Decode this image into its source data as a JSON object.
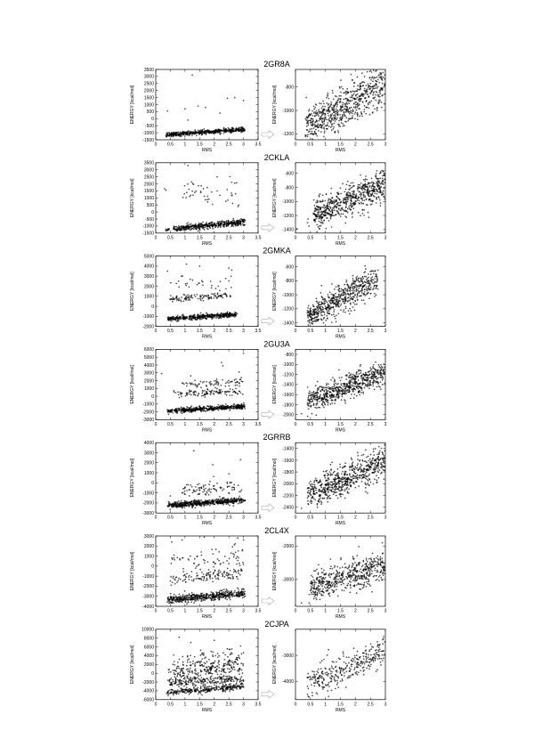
{
  "figure": {
    "x_tick_labels": [
      "0",
      "0.5",
      "1",
      "1.5",
      "2",
      "2.5",
      "3",
      "3.5"
    ]
  },
  "chart_data": [
    {
      "panel": "2GR8A",
      "type": "scatter",
      "title": "2GR8A",
      "xlabel": "RMS",
      "ylabel": "ENERGY [kcal/mol]",
      "left": {
        "xlim": [
          0,
          3.5
        ],
        "ylim": [
          -1500,
          3500
        ],
        "yticks": [
          -1500,
          -1000,
          -500,
          0,
          500,
          1000,
          1500,
          2000,
          2500,
          3000,
          3500
        ],
        "clusters": [
          {
            "x_start": 0.35,
            "x_end": 3.05,
            "y_start": -1150,
            "y_end": -750,
            "spread": 80,
            "count": 500
          }
        ],
        "outliers": [
          [
            0.4,
            550
          ],
          [
            1.25,
            3100
          ],
          [
            1.0,
            700
          ],
          [
            1.45,
            900
          ],
          [
            1.7,
            800
          ],
          [
            2.45,
            1450
          ],
          [
            2.2,
            400
          ],
          [
            2.7,
            1500
          ],
          [
            3.0,
            1300
          ],
          [
            1.1,
            -100
          ]
        ]
      },
      "right": {
        "xlim": [
          0,
          3
        ],
        "ylim": [
          -1250,
          -650
        ],
        "yticks": [
          -1200,
          -1000,
          -800
        ],
        "x_start": 0.35,
        "x_end": 3.0,
        "y_start": -1150,
        "y_end": -760,
        "spread": 95,
        "count": 700,
        "outliers": []
      }
    },
    {
      "panel": "2CKLA",
      "type": "scatter",
      "title": "2CKLA",
      "xlabel": "RMS",
      "ylabel": "ENERGY [kcal/mol]",
      "left": {
        "xlim": [
          0,
          3.5
        ],
        "ylim": [
          -1500,
          3500
        ],
        "yticks": [
          -1500,
          -1000,
          -500,
          0,
          500,
          1000,
          1500,
          2000,
          2500,
          3000,
          3500
        ],
        "clusters": [
          {
            "x_start": 0.6,
            "x_end": 3.05,
            "y_start": -1200,
            "y_end": -700,
            "spread": 110,
            "count": 450
          },
          {
            "x_start": 0.35,
            "x_end": 0.45,
            "y_start": -1300,
            "y_end": -1200,
            "spread": 40,
            "count": 12
          },
          {
            "x_start": 0.9,
            "x_end": 2.9,
            "y_start": 1400,
            "y_end": 1300,
            "spread": 400,
            "count": 45
          }
        ],
        "outliers": [
          [
            0.3,
            1650
          ],
          [
            0.35,
            1550
          ],
          [
            1.1,
            3300
          ],
          [
            2.1,
            2500
          ],
          [
            2.7,
            2050
          ]
        ]
      },
      "right": {
        "xlim": [
          0,
          3
        ],
        "ylim": [
          -1450,
          -450
        ],
        "yticks": [
          -1400,
          -1200,
          -1000,
          -800,
          -600
        ],
        "x_start": 0.6,
        "x_end": 3.0,
        "y_start": -1200,
        "y_end": -750,
        "spread": 110,
        "count": 650,
        "outliers": [
          [
            0.4,
            -1300
          ],
          [
            0.42,
            -1250
          ],
          [
            0.45,
            -1350
          ],
          [
            0.05,
            -1390
          ]
        ]
      }
    },
    {
      "panel": "2GMKA",
      "type": "scatter",
      "title": "2GMKA",
      "xlabel": "RMS",
      "ylabel": "ENERGY [kcal/mol]",
      "left": {
        "xlim": [
          0,
          3.5
        ],
        "ylim": [
          -2000,
          5000
        ],
        "yticks": [
          -2000,
          -1000,
          0,
          1000,
          2000,
          3000,
          4000,
          5000
        ],
        "clusters": [
          {
            "x_start": 0.4,
            "x_end": 2.75,
            "y_start": -1250,
            "y_end": -800,
            "spread": 120,
            "count": 450
          },
          {
            "x_start": 0.4,
            "x_end": 2.6,
            "y_start": 700,
            "y_end": 1100,
            "spread": 180,
            "count": 110
          },
          {
            "x_start": 0.5,
            "x_end": 2.6,
            "y_start": 2500,
            "y_end": 2000,
            "spread": 500,
            "count": 30
          }
        ],
        "outliers": [
          [
            0.4,
            3500
          ],
          [
            1.05,
            4200
          ],
          [
            1.5,
            4000
          ],
          [
            2.5,
            3800
          ],
          [
            2.6,
            3600
          ]
        ]
      },
      "right": {
        "xlim": [
          0,
          3
        ],
        "ylim": [
          -1450,
          -450
        ],
        "yticks": [
          -1400,
          -1200,
          -1000,
          -800,
          -600
        ],
        "x_start": 0.4,
        "x_end": 2.75,
        "y_start": -1320,
        "y_end": -760,
        "spread": 100,
        "count": 600,
        "outliers": []
      }
    },
    {
      "panel": "2GU3A",
      "type": "scatter",
      "title": "2GU3A",
      "xlabel": "RMS",
      "ylabel": "ENERGY [kcal/mol]",
      "left": {
        "xlim": [
          0,
          3.5
        ],
        "ylim": [
          -3000,
          6000
        ],
        "yticks": [
          -3000,
          -2000,
          -1000,
          0,
          1000,
          2000,
          3000,
          4000,
          5000,
          6000
        ],
        "clusters": [
          {
            "x_start": 0.4,
            "x_end": 3.05,
            "y_start": -1900,
            "y_end": -1300,
            "spread": 150,
            "count": 500
          },
          {
            "x_start": 0.6,
            "x_end": 3.0,
            "y_start": 300,
            "y_end": 600,
            "spread": 220,
            "count": 110
          },
          {
            "x_start": 0.8,
            "x_end": 3.0,
            "y_start": 1500,
            "y_end": 1800,
            "spread": 300,
            "count": 70
          }
        ],
        "outliers": [
          [
            0.2,
            2900
          ],
          [
            1.2,
            2600
          ],
          [
            2.25,
            4300
          ],
          [
            2.3,
            3900
          ],
          [
            3.0,
            5500
          ],
          [
            2.85,
            3100
          ]
        ]
      },
      "right": {
        "xlim": [
          0,
          3
        ],
        "ylim": [
          -2100,
          -700
        ],
        "yticks": [
          -2000,
          -1800,
          -1600,
          -1400,
          -1200,
          -1000,
          -800
        ],
        "x_start": 0.4,
        "x_end": 3.0,
        "y_start": -1750,
        "y_end": -1150,
        "spread": 120,
        "count": 650,
        "outliers": [
          [
            0.2,
            -1980
          ]
        ]
      }
    },
    {
      "panel": "2GRRB",
      "type": "scatter",
      "title": "2GRRB",
      "xlabel": "RMS",
      "ylabel": "ENERGY [kcal/mol]",
      "left": {
        "xlim": [
          0,
          3.5
        ],
        "ylim": [
          -3000,
          4000
        ],
        "yticks": [
          -3000,
          -2000,
          -1000,
          0,
          1000,
          2000,
          3000,
          4000
        ],
        "clusters": [
          {
            "x_start": 0.4,
            "x_end": 3.05,
            "y_start": -2250,
            "y_end": -1700,
            "spread": 150,
            "count": 550
          },
          {
            "x_start": 0.9,
            "x_end": 3.0,
            "y_start": -600,
            "y_end": -400,
            "spread": 400,
            "count": 90
          }
        ],
        "outliers": [
          [
            0.5,
            -1300
          ],
          [
            0.9,
            -1000
          ],
          [
            1.3,
            3200
          ],
          [
            1.95,
            1800
          ],
          [
            2.5,
            900
          ],
          [
            2.9,
            2300
          ]
        ]
      },
      "right": {
        "xlim": [
          0,
          3
        ],
        "ylim": [
          -2500,
          -1300
        ],
        "yticks": [
          -2400,
          -2200,
          -2000,
          -1800,
          -1600,
          -1400
        ],
        "x_start": 0.4,
        "x_end": 3.0,
        "y_start": -2200,
        "y_end": -1600,
        "spread": 130,
        "count": 650,
        "outliers": [
          [
            0.2,
            -2420
          ]
        ]
      }
    },
    {
      "panel": "2CL4X",
      "type": "scatter",
      "title": "2CL4X",
      "xlabel": "RMS",
      "ylabel": "ENERGY [kcal/mol]",
      "left": {
        "xlim": [
          0,
          3.5
        ],
        "ylim": [
          -4000,
          3000
        ],
        "yticks": [
          -4000,
          -3000,
          -2000,
          -1000,
          0,
          1000,
          2000,
          3000
        ],
        "clusters": [
          {
            "x_start": 0.4,
            "x_end": 3.05,
            "y_start": -3400,
            "y_end": -2700,
            "spread": 200,
            "count": 500
          },
          {
            "x_start": 0.5,
            "x_end": 3.0,
            "y_start": -1400,
            "y_end": -600,
            "spread": 300,
            "count": 130
          },
          {
            "x_start": 0.5,
            "x_end": 3.0,
            "y_start": 600,
            "y_end": 900,
            "spread": 700,
            "count": 70
          }
        ],
        "outliers": [
          [
            0.55,
            2400
          ],
          [
            0.9,
            2600
          ],
          [
            2.8,
            2800
          ],
          [
            3.0,
            2600
          ]
        ]
      },
      "right": {
        "xlim": [
          0,
          3
        ],
        "ylim": [
          -3800,
          -1700
        ],
        "yticks": [
          -3000,
          -2000
        ],
        "x_start": 0.45,
        "x_end": 3.0,
        "y_start": -3250,
        "y_end": -2550,
        "spread": 230,
        "count": 550,
        "outliers": [
          [
            0.2,
            -3700
          ]
        ]
      }
    },
    {
      "panel": "2CJPA",
      "type": "scatter",
      "title": "2CJPA",
      "xlabel": "RMS",
      "ylabel": "ENERGY [kcal/mol]",
      "left": {
        "xlim": [
          0,
          3.5
        ],
        "ylim": [
          -6000,
          10000
        ],
        "yticks": [
          -6000,
          -4000,
          -2000,
          0,
          2000,
          4000,
          6000,
          8000,
          10000
        ],
        "clusters": [
          {
            "x_start": 0.4,
            "x_end": 3.0,
            "y_start": -4400,
            "y_end": -3000,
            "spread": 350,
            "count": 280
          },
          {
            "x_start": 0.4,
            "x_end": 3.0,
            "y_start": -2200,
            "y_end": -1500,
            "spread": 500,
            "count": 220
          },
          {
            "x_start": 0.4,
            "x_end": 3.0,
            "y_start": 0,
            "y_end": 1500,
            "spread": 900,
            "count": 200
          },
          {
            "x_start": 0.6,
            "x_end": 3.0,
            "y_start": 2500,
            "y_end": 3500,
            "spread": 1200,
            "count": 90
          }
        ],
        "outliers": [
          [
            0.8,
            8200
          ],
          [
            1.2,
            7000
          ],
          [
            2.0,
            7500
          ],
          [
            2.6,
            5500
          ],
          [
            2.9,
            6200
          ]
        ]
      },
      "right": {
        "xlim": [
          0,
          3
        ],
        "ylim": [
          -4700,
          -2000
        ],
        "yticks": [
          -4000,
          -3000
        ],
        "x_start": 0.4,
        "x_end": 3.0,
        "y_start": -4100,
        "y_end": -2900,
        "spread": 300,
        "count": 330,
        "outliers": [
          [
            0.4,
            -4500
          ],
          [
            0.45,
            -4600
          ]
        ]
      }
    }
  ]
}
